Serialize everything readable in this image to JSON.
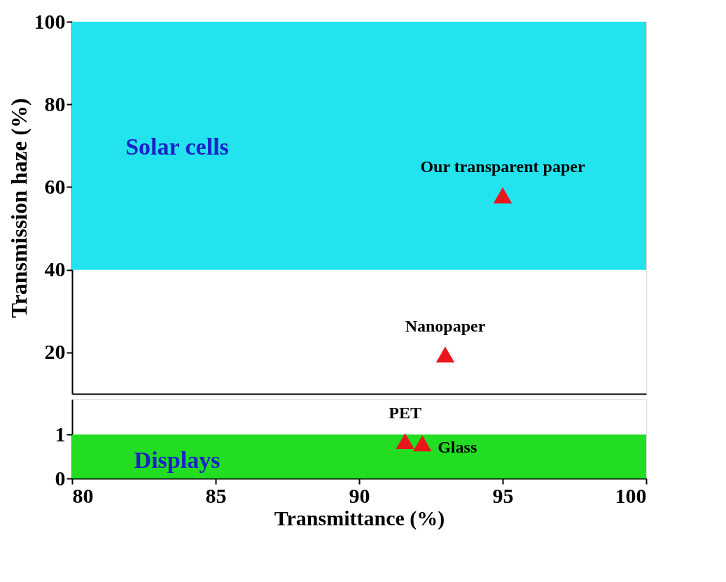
{
  "chart_data": [
    {
      "type": "scatter",
      "ylabel": "Transmission haze (%)",
      "xlim": [
        80,
        100
      ],
      "ylim": [
        10,
        100
      ],
      "yticks": [
        20,
        40,
        60,
        80,
        100
      ],
      "tick_labels": "y",
      "marker": "triangle",
      "grid": false,
      "series": [
        {
          "x": [
            93,
            95
          ],
          "values": [
            19.5,
            58
          ],
          "color": "#e8171c"
        }
      ],
      "bands": [
        {
          "axis": "y",
          "from": 40,
          "to": 100,
          "color": "#22e3ee"
        }
      ],
      "annotations": [
        {
          "text": "Nanopaper",
          "x": 93,
          "y": 19.5
        },
        {
          "text": "Our transparent paper",
          "x": 95,
          "y": 58
        },
        "Solar cells"
      ]
    },
    {
      "type": "scatter",
      "xlabel": "Transmittance (%)",
      "xlim": [
        80,
        100
      ],
      "xticks": [
        80,
        85,
        90,
        95,
        100
      ],
      "ylim": [
        0,
        1.8
      ],
      "yticks": [
        0,
        1
      ],
      "marker": "triangle",
      "grid": false,
      "series": [
        {
          "x": [
            91.6,
            92.2
          ],
          "values": [
            0.85,
            0.8
          ],
          "color": "#e8171c"
        }
      ],
      "bands": [
        {
          "axis": "y",
          "from": 0,
          "to": 1,
          "color": "#22dd22"
        }
      ],
      "annotations": [
        {
          "text": "PET",
          "x": 91.6,
          "y": 0.85
        },
        {
          "text": "Glass",
          "x": 92.2,
          "y": 0.8
        },
        "Displays"
      ]
    }
  ]
}
